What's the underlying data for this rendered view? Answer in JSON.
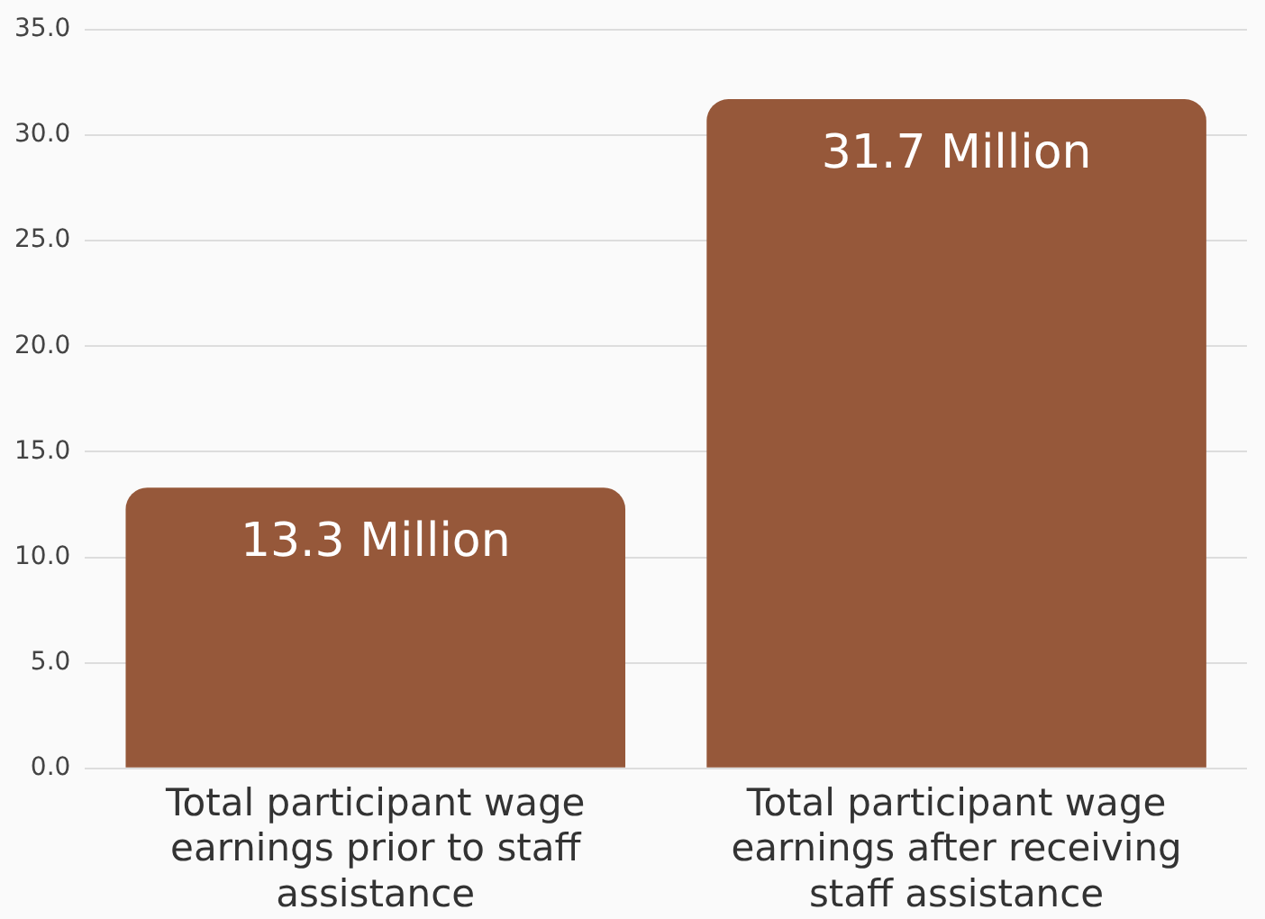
{
  "chart_data": {
    "type": "bar",
    "categories": [
      "Total participant wage earnings prior to staff assistance",
      "Total participant wage earnings after receiving staff assistance"
    ],
    "values": [
      13.3,
      31.7
    ],
    "color": "#96583a",
    "value_labels": [
      "13.3 Million",
      "31.7 Million"
    ],
    "ylim": [
      0,
      35
    ],
    "yticks": [
      {
        "value": 0,
        "label": "0.0"
      },
      {
        "value": 5,
        "label": "5.0"
      },
      {
        "value": 10,
        "label": "10.0"
      },
      {
        "value": 15,
        "label": "15.0"
      },
      {
        "value": 20,
        "label": "20.0"
      },
      {
        "value": 25,
        "label": "25.0"
      },
      {
        "value": 30,
        "label": "30.0"
      },
      {
        "value": 35,
        "label": "35.0"
      }
    ],
    "grid": "y"
  }
}
